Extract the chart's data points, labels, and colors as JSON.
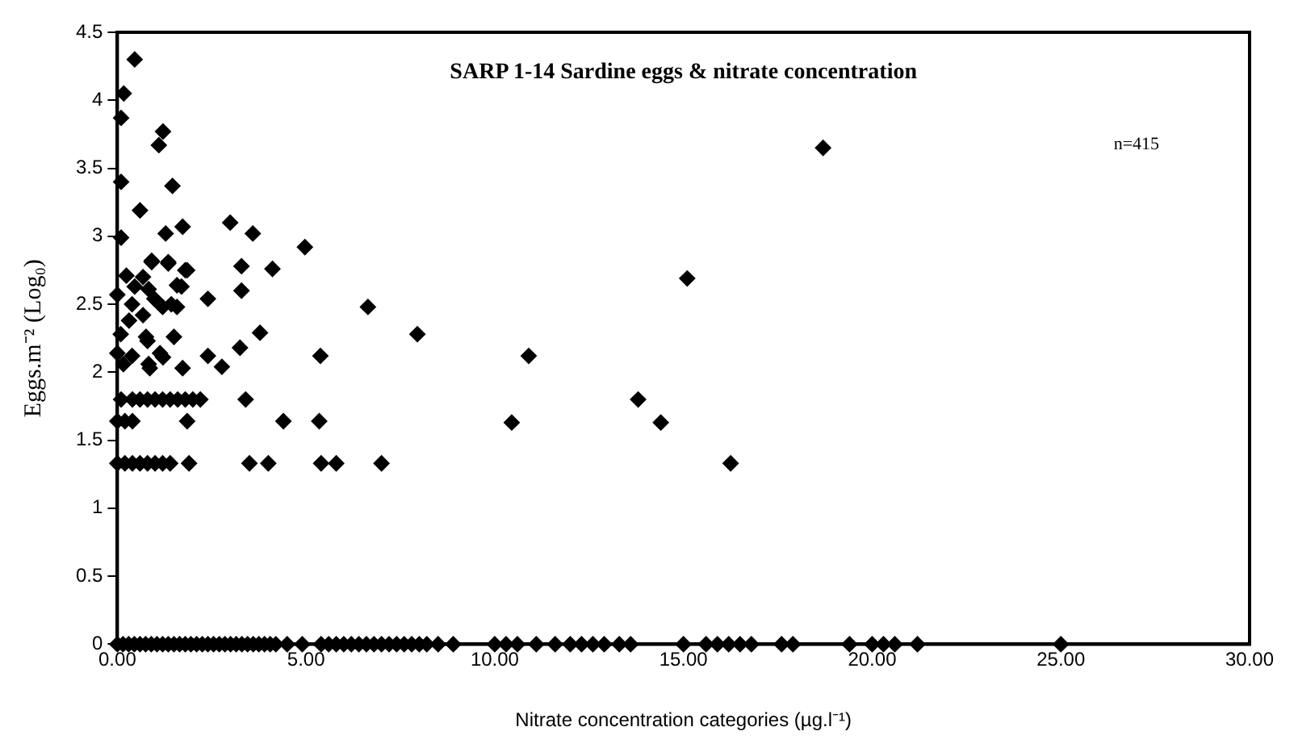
{
  "chart_data": {
    "type": "scatter",
    "title": "SARP 1-14 Sardine eggs & nitrate concentration",
    "xlabel": "Nitrate concentration categories (µg.l⁻¹)",
    "ylabel": "Eggs.m⁻² (Log₀)",
    "annotations": [
      "n=415"
    ],
    "series": [
      {
        "color": "#000000",
        "x": [
          0.46,
          0.17,
          0.1,
          1.21,
          1.1,
          0.1,
          1.46,
          0.6,
          2.99,
          3.59,
          4.97,
          0.1,
          1.28,
          1.73,
          0.91,
          1.35,
          1.85,
          3.29,
          4.11,
          1.7,
          1.2,
          1.58,
          2.4,
          3.29,
          3.78,
          6.64,
          7.95,
          18.7,
          15.1,
          10.9,
          10.45,
          13.8,
          14.4,
          16.25,
          3.25,
          2.4,
          2.77,
          5.38,
          1.21,
          1.5,
          0.8,
          1.73,
          0.86,
          3.4,
          4.4,
          5.35,
          1.85,
          0.0,
          0.2,
          0.4,
          0.1,
          0.4,
          0.6,
          0.8,
          1.0,
          1.2,
          1.4,
          1.6,
          1.8,
          2.0,
          2.2,
          0.0,
          0.2,
          0.4,
          0.6,
          0.8,
          1.0,
          1.2,
          1.4,
          1.9,
          3.5,
          4.0,
          5.4,
          5.8,
          7.0,
          0.24,
          0.68,
          0.91,
          1.35,
          1.8,
          0.0,
          0.46,
          0.83,
          1.58,
          0.39,
          0.98,
          1.43,
          0.31,
          0.68,
          0.09,
          0.76,
          0.0,
          0.39,
          1.13,
          0.16,
          0.83,
          0,
          0.15,
          0.3,
          0.45,
          0.6,
          0.75,
          0.9,
          1.05,
          1.2,
          1.35,
          1.5,
          1.65,
          1.8,
          1.95,
          2.1,
          2.25,
          2.4,
          2.55,
          2.7,
          2.85,
          3.0,
          3.15,
          3.3,
          3.45,
          3.6,
          3.75,
          3.9,
          4.05,
          4.2,
          4.5,
          4.9,
          5.4,
          5.6,
          5.8,
          6.0,
          6.2,
          6.4,
          6.6,
          6.8,
          7.0,
          7.2,
          7.4,
          7.6,
          7.8,
          8.0,
          8.2,
          8.5,
          8.9,
          10.0,
          10.3,
          10.6,
          11.1,
          11.6,
          12.0,
          12.3,
          12.6,
          12.9,
          13.3,
          13.6,
          15.0,
          15.6,
          15.9,
          16.2,
          16.5,
          16.8,
          17.6,
          17.9,
          19.4,
          20.0,
          20.3,
          20.6,
          21.2,
          25.0
        ],
        "values": [
          4.3,
          4.05,
          3.87,
          3.77,
          3.67,
          3.4,
          3.37,
          3.19,
          3.1,
          3.02,
          2.92,
          2.99,
          3.02,
          3.07,
          2.82,
          2.8,
          2.75,
          2.78,
          2.76,
          2.63,
          2.48,
          2.48,
          2.54,
          2.6,
          2.29,
          2.48,
          2.28,
          3.65,
          2.69,
          2.12,
          1.63,
          1.8,
          1.63,
          1.33,
          2.18,
          2.12,
          2.04,
          2.12,
          2.11,
          2.26,
          2.23,
          2.03,
          2.03,
          1.8,
          1.64,
          1.64,
          1.64,
          1.64,
          1.64,
          1.64,
          1.8,
          1.8,
          1.8,
          1.8,
          1.8,
          1.8,
          1.8,
          1.8,
          1.8,
          1.8,
          1.8,
          1.33,
          1.33,
          1.33,
          1.33,
          1.33,
          1.33,
          1.33,
          1.33,
          1.33,
          1.33,
          1.33,
          1.33,
          1.33,
          1.33,
          2.71,
          2.7,
          2.81,
          2.81,
          2.75,
          2.57,
          2.63,
          2.61,
          2.64,
          2.5,
          2.54,
          2.5,
          2.38,
          2.42,
          2.28,
          2.26,
          2.14,
          2.12,
          2.14,
          2.06,
          2.06,
          0,
          0,
          0,
          0,
          0,
          0,
          0,
          0,
          0,
          0,
          0,
          0,
          0,
          0,
          0,
          0,
          0,
          0,
          0,
          0,
          0,
          0,
          0,
          0,
          0,
          0,
          0,
          0,
          0,
          0,
          0,
          0,
          0,
          0,
          0,
          0,
          0,
          0,
          0,
          0,
          0,
          0,
          0,
          0,
          0,
          0,
          0,
          0,
          0,
          0,
          0,
          0,
          0,
          0,
          0,
          0,
          0,
          0,
          0,
          0,
          0,
          0,
          0,
          0,
          0,
          0,
          0,
          0,
          0,
          0,
          0,
          0,
          0
        ]
      }
    ],
    "xlim": [
      0,
      30
    ],
    "xticks": [
      {
        "value": 0,
        "label": "0.00"
      },
      {
        "value": 5,
        "label": "5.00"
      },
      {
        "value": 10,
        "label": "10.00"
      },
      {
        "value": 15,
        "label": "15.00"
      },
      {
        "value": 20,
        "label": "20.00"
      },
      {
        "value": 25,
        "label": "25.00"
      },
      {
        "value": 30,
        "label": "30.00"
      }
    ],
    "ylim": [
      0,
      4.5
    ],
    "yticks": [
      0,
      0.5,
      1,
      1.5,
      2,
      2.5,
      3,
      3.5,
      4,
      4.5
    ],
    "marker": "diamond",
    "legend": false,
    "grid": false
  }
}
